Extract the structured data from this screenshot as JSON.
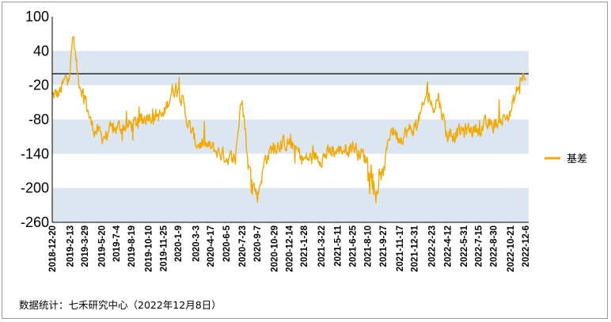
{
  "chart_data": {
    "type": "line",
    "title": "",
    "xlabel": "",
    "ylabel": "",
    "ylim": [
      -260,
      100
    ],
    "yticks": [
      100,
      40,
      -20,
      -80,
      -140,
      -200,
      -260
    ],
    "grid": "alternating horizontal bands",
    "legend_position": "right",
    "reference_line_y": 0,
    "x_tick_labels": [
      "2018-12-20",
      "2019-2-13",
      "2019-3-29",
      "2019-5-20",
      "2019-7-4",
      "2019-8-19",
      "2019-10-10",
      "2019-11-25",
      "2020-1-9",
      "2020-3-3",
      "2020-4-17",
      "2020-6-5",
      "2020-7-23",
      "2020-9-7",
      "2020-10-29",
      "2020-12-14",
      "2021-1-28",
      "2021-3-22",
      "2021-5-11",
      "2021-6-25",
      "2021-8-10",
      "2021-9-27",
      "2021-11-17",
      "2021-12-31",
      "2022-2-23",
      "2022-4-12",
      "2022-5-31",
      "2022-7-15",
      "2022-8-30",
      "2022-10-21",
      "2022-12-6"
    ],
    "series": [
      {
        "name": "基差",
        "color": "#f2a900",
        "anchors": [
          [
            "2018-12-20",
            -40
          ],
          [
            "2019-1-10",
            -35
          ],
          [
            "2019-1-31",
            -10
          ],
          [
            "2019-2-13",
            10
          ],
          [
            "2019-2-22",
            70
          ],
          [
            "2019-3-8",
            -5
          ],
          [
            "2019-3-29",
            -40
          ],
          [
            "2019-4-19",
            -90
          ],
          [
            "2019-5-20",
            -110
          ],
          [
            "2019-6-10",
            -105
          ],
          [
            "2019-7-4",
            -95
          ],
          [
            "2019-8-19",
            -90
          ],
          [
            "2019-9-12",
            -85
          ],
          [
            "2019-10-10",
            -70
          ],
          [
            "2019-11-25",
            -75
          ],
          [
            "2019-12-20",
            -30
          ],
          [
            "2020-1-9",
            -20
          ],
          [
            "2020-2-10",
            -90
          ],
          [
            "2020-3-3",
            -120
          ],
          [
            "2020-4-17",
            -130
          ],
          [
            "2020-6-5",
            -145
          ],
          [
            "2020-7-1",
            -150
          ],
          [
            "2020-7-23",
            -30
          ],
          [
            "2020-8-10",
            -160
          ],
          [
            "2020-9-7",
            -215
          ],
          [
            "2020-10-1",
            -150
          ],
          [
            "2020-10-29",
            -125
          ],
          [
            "2020-12-14",
            -120
          ],
          [
            "2021-1-28",
            -150
          ],
          [
            "2021-3-22",
            -145
          ],
          [
            "2021-5-11",
            -135
          ],
          [
            "2021-6-25",
            -125
          ],
          [
            "2021-8-10",
            -150
          ],
          [
            "2021-9-3",
            -210
          ],
          [
            "2021-9-27",
            -175
          ],
          [
            "2021-10-20",
            -95
          ],
          [
            "2021-11-17",
            -110
          ],
          [
            "2021-12-31",
            -95
          ],
          [
            "2022-1-30",
            -60
          ],
          [
            "2022-2-10",
            -20
          ],
          [
            "2022-2-23",
            -60
          ],
          [
            "2022-3-15",
            -40
          ],
          [
            "2022-4-12",
            -110
          ],
          [
            "2022-5-31",
            -100
          ],
          [
            "2022-7-15",
            -95
          ],
          [
            "2022-8-30",
            -90
          ],
          [
            "2022-10-21",
            -70
          ],
          [
            "2022-11-10",
            -30
          ],
          [
            "2022-11-28",
            -5
          ],
          [
            "2022-12-6",
            -15
          ]
        ]
      }
    ]
  },
  "legend": {
    "label": "基差"
  },
  "source_note": "数据统计：七禾研究中心（2022年12月8日）"
}
